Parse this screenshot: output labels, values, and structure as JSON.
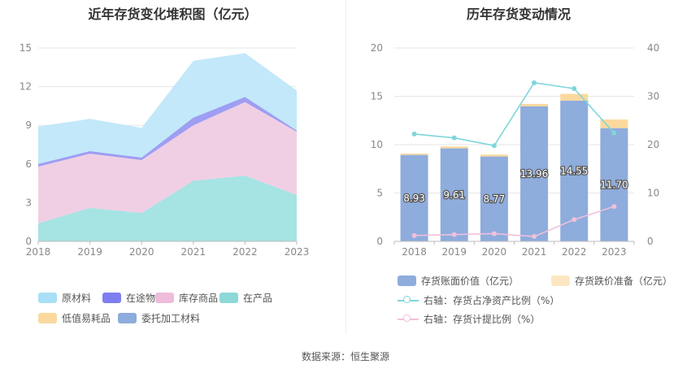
{
  "footer": {
    "source": "数据来源：恒生聚源"
  },
  "chart_data": [
    {
      "type": "area",
      "title": "近年存货变化堆积图（亿元）",
      "x": [
        "2018",
        "2019",
        "2020",
        "2021",
        "2022",
        "2023"
      ],
      "ylim": [
        0,
        15
      ],
      "yticks": [
        "0",
        "3",
        "6",
        "9",
        "12",
        "15"
      ],
      "series": [
        {
          "name": "在产品",
          "color": "#a6e3e3",
          "values": [
            1.4,
            2.6,
            2.2,
            4.7,
            5.1,
            3.6
          ]
        },
        {
          "name": "库存商品",
          "color": "#f0cfe4",
          "values": [
            4.4,
            4.2,
            4.1,
            4.3,
            5.7,
            4.9
          ]
        },
        {
          "name": "在途物资",
          "color": "#9e9ef2",
          "values": [
            0.2,
            0.2,
            0.2,
            0.6,
            0.4,
            0.1
          ]
        },
        {
          "name": "原材料",
          "color": "#c2e8fa",
          "values": [
            2.9,
            2.5,
            2.3,
            4.4,
            3.4,
            3.1
          ]
        },
        {
          "name": "低值易耗品",
          "color": "#fbd99d",
          "values": [
            0,
            0,
            0,
            0,
            0,
            0
          ]
        },
        {
          "name": "委托加工材料",
          "color": "#8eacdc",
          "values": [
            0,
            0,
            0,
            0,
            0,
            0
          ]
        }
      ],
      "legend": [
        "原材料",
        "在途物资",
        "库存商品",
        "在产品",
        "低值易耗品",
        "委托加工材料"
      ],
      "legend_colors": [
        "#a9dff7",
        "#7e7ef0",
        "#efbcdc",
        "#8ed8d8",
        "#fbd99d",
        "#8eacdc"
      ],
      "grid": true,
      "legend_position": "bottom"
    },
    {
      "type": "bar",
      "title": "历年存货变动情况",
      "categories": [
        "2018",
        "2019",
        "2020",
        "2021",
        "2022",
        "2023"
      ],
      "ylim": [
        0,
        20
      ],
      "yticks": [
        "0",
        "5",
        "10",
        "15",
        "20"
      ],
      "y2lim": [
        0,
        40
      ],
      "y2ticks": [
        "0",
        "10",
        "20",
        "30",
        "40"
      ],
      "series": [
        {
          "name": "存货账面价值（亿元）",
          "color": "#8eacdc",
          "axis": "left",
          "values": [
            8.93,
            9.61,
            8.77,
            13.96,
            14.55,
            11.7
          ],
          "labels": [
            "8.93",
            "9.61",
            "8.77",
            "13.96",
            "14.55",
            "11.70"
          ]
        },
        {
          "name": "存货跌价准备（亿元）",
          "color": "#fbd99d",
          "axis": "left",
          "values": [
            0.15,
            0.2,
            0.2,
            0.25,
            0.7,
            0.9
          ]
        },
        {
          "name": "右轴：存货占净资产比例（%）",
          "color": "#7fd6db",
          "axis": "right",
          "type": "line",
          "values": [
            22.2,
            21.4,
            19.8,
            32.8,
            31.6,
            22.4
          ]
        },
        {
          "name": "右轴：存货计提比例（%）",
          "color": "#f0c0dc",
          "axis": "right",
          "type": "line",
          "values": [
            1.2,
            1.4,
            1.6,
            1.0,
            4.5,
            7.2
          ]
        }
      ],
      "legend_colors": [
        "#8eacdc",
        "#fde7c2",
        "#7fd6db",
        "#f0c0dc"
      ],
      "grid": true,
      "legend_position": "bottom"
    }
  ]
}
